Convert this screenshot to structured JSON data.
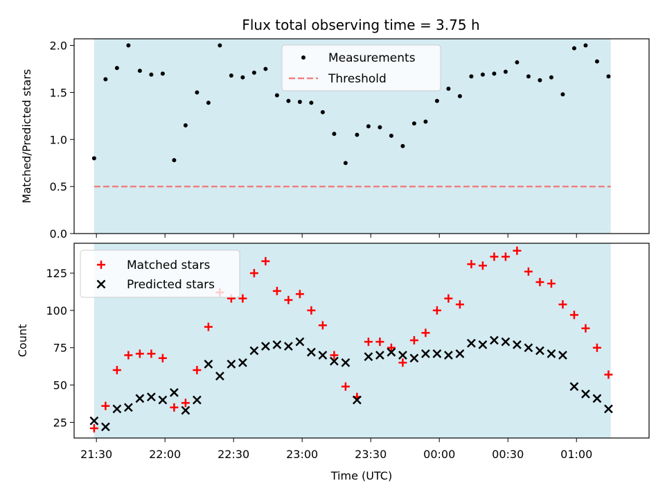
{
  "figure": {
    "title": "Flux total observing time = 3.75 h"
  },
  "chart_data": [
    {
      "type": "scatter",
      "panel": "top",
      "ylabel": "Matched/Predicted stars",
      "ylim": [
        0,
        2.07
      ],
      "yticks": [
        0.0,
        0.5,
        1.0,
        1.5,
        2.0
      ],
      "ytick_labels": [
        "0.0",
        "0.5",
        "1.0",
        "1.5",
        "2.0"
      ],
      "shaded_span": [
        "21:29",
        "01:15"
      ],
      "shade_color": "#add8e6",
      "threshold": 0.5,
      "threshold_color": "#f08080",
      "legend_position": "upper center",
      "series": [
        {
          "name": "Measurements",
          "color": "#000000",
          "x": [
            "21:29",
            "21:34",
            "21:39",
            "21:44",
            "21:49",
            "21:54",
            "21:59",
            "22:04",
            "22:09",
            "22:14",
            "22:19",
            "22:24",
            "22:29",
            "22:34",
            "22:39",
            "22:44",
            "22:49",
            "22:54",
            "22:59",
            "23:04",
            "23:09",
            "23:14",
            "23:19",
            "23:24",
            "23:29",
            "23:34",
            "23:39",
            "23:44",
            "23:49",
            "23:54",
            "23:59",
            "00:04",
            "00:09",
            "00:14",
            "00:19",
            "00:24",
            "00:29",
            "00:34",
            "00:39",
            "00:44",
            "00:49",
            "00:54",
            "00:59",
            "01:04",
            "01:09",
            "01:14"
          ],
          "values": [
            0.8,
            1.64,
            1.76,
            2.0,
            1.73,
            1.69,
            1.7,
            0.78,
            1.15,
            1.5,
            1.39,
            2.0,
            1.68,
            1.66,
            1.71,
            1.75,
            1.47,
            1.41,
            1.4,
            1.39,
            1.29,
            1.06,
            0.75,
            1.05,
            1.14,
            1.13,
            1.04,
            0.93,
            1.17,
            1.19,
            1.41,
            1.54,
            1.46,
            1.67,
            1.69,
            1.7,
            1.72,
            1.82,
            1.67,
            1.63,
            1.66,
            1.48,
            1.97,
            2.0,
            1.83,
            1.67
          ]
        },
        {
          "name": "Threshold",
          "color": "#f08080",
          "x": [
            "21:29",
            "01:15"
          ],
          "values": [
            0.5,
            0.5
          ]
        }
      ]
    },
    {
      "type": "scatter",
      "panel": "bottom",
      "xlabel": "Time (UTC)",
      "ylabel": "Count",
      "ylim": [
        14.5,
        145
      ],
      "yticks": [
        25,
        50,
        75,
        100,
        125
      ],
      "ytick_labels": [
        "25",
        "50",
        "75",
        "100",
        "125"
      ],
      "xtick_times": [
        "21:30",
        "22:00",
        "22:30",
        "23:00",
        "23:30",
        "00:00",
        "00:30",
        "01:00"
      ],
      "xtick_labels": [
        "21:30",
        "22:00",
        "22:30",
        "23:00",
        "23:30",
        "00:00",
        "00:30",
        "01:00"
      ],
      "shaded_span": [
        "21:29",
        "01:15"
      ],
      "legend_position": "upper left",
      "series": [
        {
          "name": "Matched stars",
          "color": "#ff0000",
          "marker": "plus",
          "x": [
            "21:29",
            "21:34",
            "21:39",
            "21:44",
            "21:49",
            "21:54",
            "21:59",
            "22:04",
            "22:09",
            "22:14",
            "22:19",
            "22:24",
            "22:29",
            "22:34",
            "22:39",
            "22:44",
            "22:49",
            "22:54",
            "22:59",
            "23:04",
            "23:09",
            "23:14",
            "23:19",
            "23:24",
            "23:29",
            "23:34",
            "23:39",
            "23:44",
            "23:49",
            "23:54",
            "23:59",
            "00:04",
            "00:09",
            "00:14",
            "00:19",
            "00:24",
            "00:29",
            "00:34",
            "00:39",
            "00:44",
            "00:49",
            "00:54",
            "00:59",
            "01:04",
            "01:09",
            "01:14"
          ],
          "values": [
            21,
            36,
            60,
            70,
            71,
            71,
            68,
            35,
            38,
            60,
            89,
            112,
            108,
            108,
            125,
            133,
            113,
            107,
            111,
            100,
            90,
            70,
            49,
            42,
            79,
            79,
            75,
            65,
            80,
            85,
            100,
            108,
            104,
            131,
            130,
            136,
            136,
            140,
            126,
            119,
            118,
            104,
            97,
            88,
            75,
            57
          ]
        },
        {
          "name": "Predicted stars",
          "color": "#000000",
          "marker": "x",
          "x": [
            "21:29",
            "21:34",
            "21:39",
            "21:44",
            "21:49",
            "21:54",
            "21:59",
            "22:04",
            "22:09",
            "22:14",
            "22:19",
            "22:24",
            "22:29",
            "22:34",
            "22:39",
            "22:44",
            "22:49",
            "22:54",
            "22:59",
            "23:04",
            "23:09",
            "23:14",
            "23:19",
            "23:24",
            "23:29",
            "23:34",
            "23:39",
            "23:44",
            "23:49",
            "23:54",
            "23:59",
            "00:04",
            "00:09",
            "00:14",
            "00:19",
            "00:24",
            "00:29",
            "00:34",
            "00:39",
            "00:44",
            "00:49",
            "00:54",
            "00:59",
            "01:04",
            "01:09",
            "01:14"
          ],
          "values": [
            26,
            22,
            34,
            35,
            41,
            42,
            40,
            45,
            33,
            40,
            64,
            56,
            64,
            65,
            73,
            76,
            77,
            76,
            79,
            72,
            70,
            66,
            65,
            40,
            69,
            70,
            72,
            70,
            68,
            71,
            71,
            70,
            71,
            78,
            77,
            80,
            79,
            77,
            75,
            73,
            71,
            70,
            49,
            44,
            41,
            34
          ]
        }
      ]
    }
  ]
}
